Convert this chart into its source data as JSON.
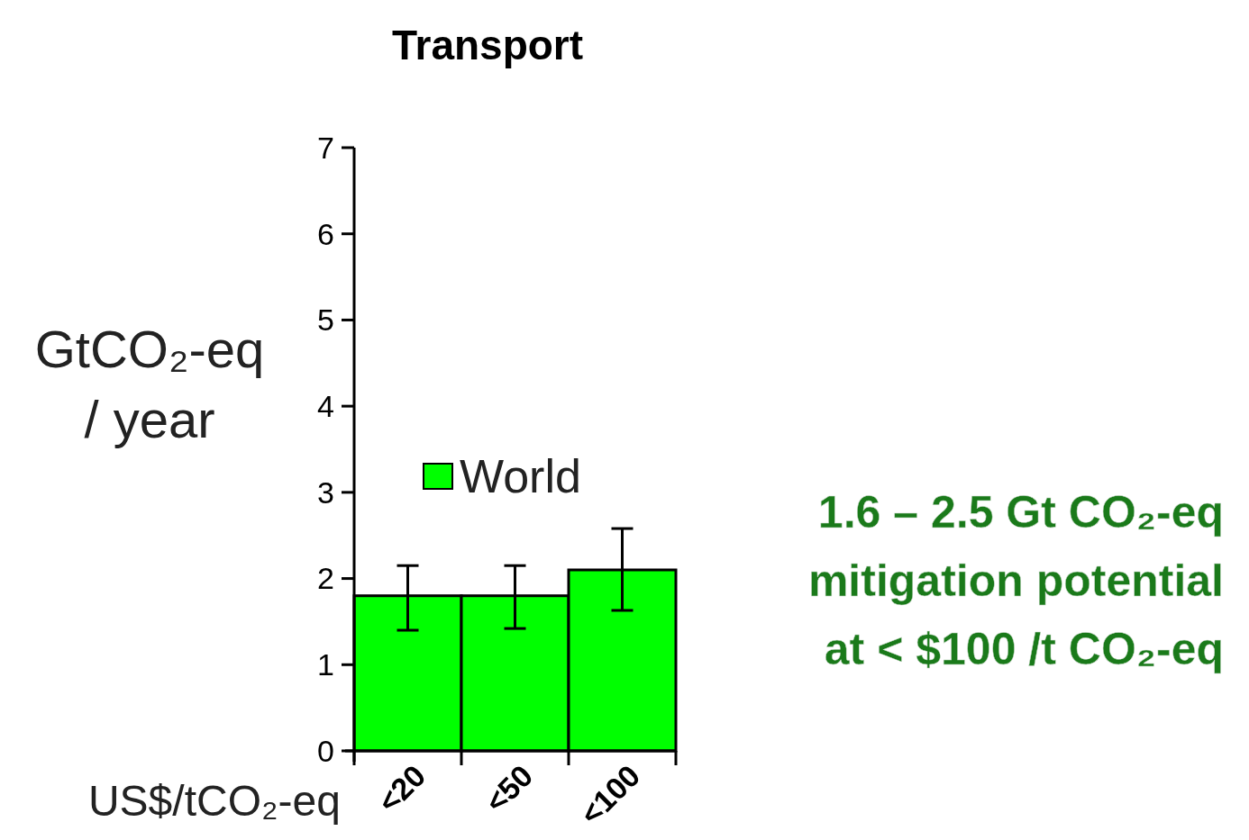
{
  "chart_data": {
    "type": "bar",
    "title": "Transport",
    "xlabel": "US$/tCO₂-eq",
    "ylabel": "GtCO₂-eq / year",
    "categories": [
      "<20",
      "<50",
      "<100"
    ],
    "series": [
      {
        "name": "World",
        "color": "#00ff00",
        "values": [
          1.8,
          1.8,
          2.1
        ],
        "errors": [
          [
            1.4,
            2.15
          ],
          [
            1.42,
            2.15
          ],
          [
            1.63,
            2.58
          ]
        ]
      }
    ],
    "ylim": [
      0,
      7
    ],
    "yticks": [
      0,
      1,
      2,
      3,
      4,
      5,
      6,
      7
    ],
    "legend": "center",
    "grid": false,
    "annotations": [
      "1.6 – 2.5 Gt CO₂-eq",
      "mitigation potential",
      "at < $100 /t CO₂-eq"
    ]
  }
}
